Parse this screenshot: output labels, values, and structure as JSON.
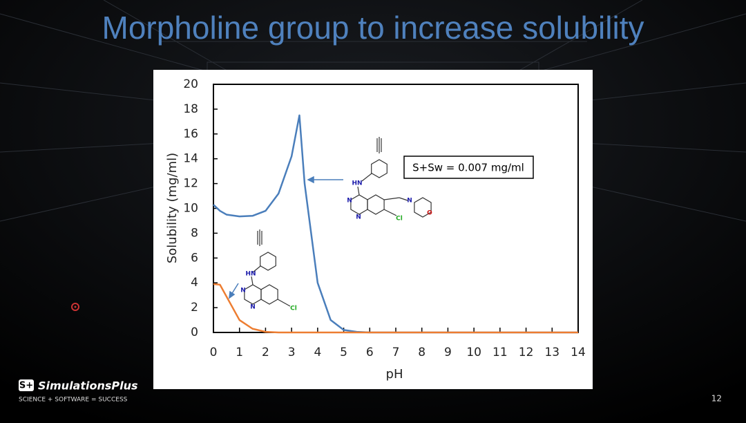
{
  "chart_data": {
    "type": "line",
    "title": "Morpholine group to increase solubility",
    "x_label": "pH",
    "y_label": "Solubility (mg/ml)",
    "x": [
      0,
      0.25,
      0.5,
      1,
      1.5,
      2,
      2.5,
      3,
      3.3,
      3.5,
      4,
      4.5,
      5,
      5.5,
      6,
      7,
      8,
      9,
      10,
      11,
      12,
      13,
      14
    ],
    "series": [
      {
        "color": "#4a7ebb",
        "values": [
          10.3,
          9.8,
          9.5,
          9.35,
          9.4,
          9.8,
          11.2,
          14.2,
          17.5,
          12,
          4,
          1,
          0.2,
          0.05,
          0,
          0,
          0,
          0,
          0,
          0,
          0,
          0,
          0
        ]
      },
      {
        "color": "#ed7d31",
        "values": [
          3.9,
          3.85,
          2.9,
          1.0,
          0.3,
          0.05,
          0,
          0,
          0,
          0,
          0,
          0,
          0,
          0,
          0,
          0,
          0,
          0,
          0,
          0,
          0,
          0,
          0
        ]
      }
    ],
    "xlim": [
      0,
      14
    ],
    "xticks": [
      0,
      1,
      2,
      3,
      4,
      5,
      6,
      7,
      8,
      9,
      10,
      11,
      12,
      13,
      14
    ],
    "ylim": [
      0,
      20
    ],
    "yticks": [
      0,
      2,
      4,
      6,
      8,
      10,
      12,
      14,
      16,
      18,
      20
    ],
    "annotations": [
      "S+Sw = 0.007 mg/ml"
    ],
    "structures": [
      {
        "atoms": [
          "HN",
          "N",
          "N",
          "N",
          "O",
          "Cl"
        ]
      },
      {
        "atoms": [
          "HN",
          "N",
          "N",
          "Cl"
        ]
      }
    ]
  },
  "slide": {
    "logo": "SimulationsPlus",
    "tagline": "SCIENCE + SOFTWARE = SUCCESS",
    "page_number": "12"
  }
}
